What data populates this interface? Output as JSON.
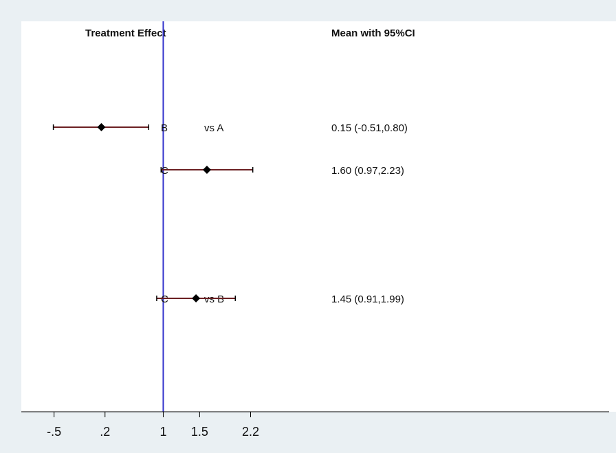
{
  "colors": {
    "background": "#eaf0f3",
    "plot_area": "#ffffff",
    "reference_line": "#3333cc",
    "ci_line": "#6b1f22",
    "marker": "#000000"
  },
  "chart_data": {
    "type": "forest",
    "column_headers": {
      "left": "Treatment Effect",
      "right": "Mean with 95%CI"
    },
    "reference_value": 1,
    "xlim": [
      -0.95,
      7.22
    ],
    "ticks": [
      {
        "value": -0.5,
        "label": "-.5"
      },
      {
        "value": 0.2,
        "label": ".2"
      },
      {
        "value": 1,
        "label": "1"
      },
      {
        "value": 1.5,
        "label": "1.5"
      },
      {
        "value": 2.2,
        "label": "2.2"
      }
    ],
    "rows": [
      {
        "treatment": "B",
        "comparator": "vs A",
        "mean": 0.15,
        "lower": -0.51,
        "upper": 0.8,
        "text": "0.15 (-0.51,0.80)"
      },
      {
        "treatment": "C",
        "comparator": "",
        "mean": 1.6,
        "lower": 0.97,
        "upper": 2.23,
        "text": "1.60 (0.97,2.23)"
      },
      {
        "treatment": "C",
        "comparator": "vs B",
        "mean": 1.45,
        "lower": 0.91,
        "upper": 1.99,
        "text": "1.45 (0.91,1.99)"
      }
    ]
  }
}
